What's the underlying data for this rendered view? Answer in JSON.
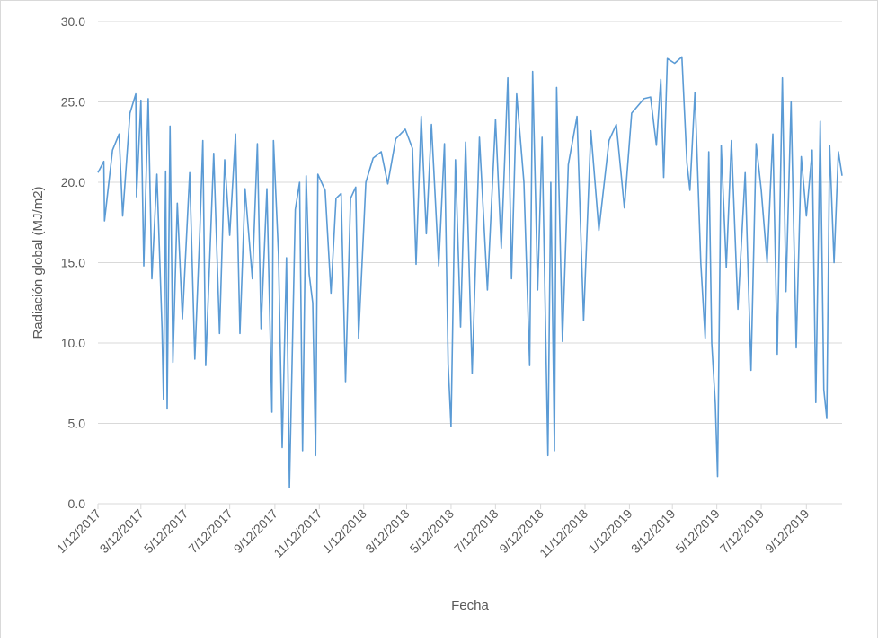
{
  "chart_data": {
    "type": "line",
    "title": "",
    "xlabel": "Fecha",
    "ylabel": "Radiación global (MJ/m2)",
    "ylim": [
      0,
      30
    ],
    "yticks": [
      "0.0",
      "5.0",
      "10.0",
      "15.0",
      "20.0",
      "25.0",
      "30.0"
    ],
    "xlim": [
      "2017-01-12",
      "2019-10-31"
    ],
    "xticks": [
      {
        "date": "2017-01-12",
        "label": "1/12/2017"
      },
      {
        "date": "2017-03-12",
        "label": "3/12/2017"
      },
      {
        "date": "2017-05-12",
        "label": "5/12/2017"
      },
      {
        "date": "2017-07-12",
        "label": "7/12/2017"
      },
      {
        "date": "2017-09-12",
        "label": "9/12/2017"
      },
      {
        "date": "2017-11-12",
        "label": "11/12/2017"
      },
      {
        "date": "2018-01-12",
        "label": "1/12/2018"
      },
      {
        "date": "2018-03-12",
        "label": "3/12/2018"
      },
      {
        "date": "2018-05-12",
        "label": "5/12/2018"
      },
      {
        "date": "2018-07-12",
        "label": "7/12/2018"
      },
      {
        "date": "2018-09-12",
        "label": "9/12/2018"
      },
      {
        "date": "2018-11-12",
        "label": "11/12/2018"
      },
      {
        "date": "2019-01-12",
        "label": "1/12/2019"
      },
      {
        "date": "2019-03-12",
        "label": "3/12/2019"
      },
      {
        "date": "2019-05-12",
        "label": "5/12/2019"
      },
      {
        "date": "2019-07-12",
        "label": "7/12/2019"
      },
      {
        "date": "2019-09-12",
        "label": "9/12/2019"
      }
    ],
    "grid": "horizontal",
    "legend": "none",
    "line_color": "#5b9bd5",
    "series": [
      {
        "points": [
          [
            "2017-01-12",
            20.6
          ],
          [
            "2017-01-20",
            21.3
          ],
          [
            "2017-01-21",
            17.6
          ],
          [
            "2017-02-01",
            22.0
          ],
          [
            "2017-02-10",
            23.0
          ],
          [
            "2017-02-15",
            17.9
          ],
          [
            "2017-02-25",
            24.3
          ],
          [
            "2017-03-05",
            25.5
          ],
          [
            "2017-03-06",
            19.1
          ],
          [
            "2017-03-12",
            25.1
          ],
          [
            "2017-03-16",
            14.8
          ],
          [
            "2017-03-22",
            25.2
          ],
          [
            "2017-03-27",
            14.0
          ],
          [
            "2017-04-03",
            20.5
          ],
          [
            "2017-04-10",
            10.9
          ],
          [
            "2017-04-12",
            6.5
          ],
          [
            "2017-04-15",
            20.7
          ],
          [
            "2017-04-17",
            5.9
          ],
          [
            "2017-04-21",
            23.5
          ],
          [
            "2017-04-25",
            8.8
          ],
          [
            "2017-05-01",
            18.7
          ],
          [
            "2017-05-08",
            11.5
          ],
          [
            "2017-05-18",
            20.6
          ],
          [
            "2017-05-25",
            9.0
          ],
          [
            "2017-06-01",
            17.0
          ],
          [
            "2017-06-05",
            22.6
          ],
          [
            "2017-06-09",
            8.6
          ],
          [
            "2017-06-20",
            21.8
          ],
          [
            "2017-06-28",
            10.6
          ],
          [
            "2017-07-05",
            21.4
          ],
          [
            "2017-07-12",
            16.7
          ],
          [
            "2017-07-20",
            23.0
          ],
          [
            "2017-07-26",
            10.6
          ],
          [
            "2017-08-02",
            19.6
          ],
          [
            "2017-08-12",
            14.0
          ],
          [
            "2017-08-19",
            22.4
          ],
          [
            "2017-08-24",
            10.9
          ],
          [
            "2017-09-01",
            19.6
          ],
          [
            "2017-09-08",
            5.7
          ],
          [
            "2017-09-10",
            22.6
          ],
          [
            "2017-09-17",
            15.5
          ],
          [
            "2017-09-22",
            3.5
          ],
          [
            "2017-09-28",
            15.3
          ],
          [
            "2017-10-02",
            1.0
          ],
          [
            "2017-10-10",
            18.3
          ],
          [
            "2017-10-16",
            20.0
          ],
          [
            "2017-10-20",
            3.3
          ],
          [
            "2017-10-25",
            20.4
          ],
          [
            "2017-10-29",
            14.3
          ],
          [
            "2017-11-03",
            12.5
          ],
          [
            "2017-11-07",
            3.0
          ],
          [
            "2017-11-10",
            20.5
          ],
          [
            "2017-11-20",
            19.5
          ],
          [
            "2017-11-28",
            13.1
          ],
          [
            "2017-12-05",
            19.0
          ],
          [
            "2017-12-12",
            19.3
          ],
          [
            "2017-12-18",
            7.6
          ],
          [
            "2017-12-25",
            19.0
          ],
          [
            "2018-01-01",
            19.7
          ],
          [
            "2018-01-05",
            10.3
          ],
          [
            "2018-01-15",
            20.0
          ],
          [
            "2018-01-25",
            21.5
          ],
          [
            "2018-02-05",
            21.9
          ],
          [
            "2018-02-14",
            19.9
          ],
          [
            "2018-02-25",
            22.7
          ],
          [
            "2018-03-10",
            23.3
          ],
          [
            "2018-03-20",
            22.1
          ],
          [
            "2018-03-25",
            14.9
          ],
          [
            "2018-04-01",
            24.1
          ],
          [
            "2018-04-08",
            16.8
          ],
          [
            "2018-04-15",
            23.6
          ],
          [
            "2018-04-25",
            14.8
          ],
          [
            "2018-05-03",
            22.4
          ],
          [
            "2018-05-08",
            8.7
          ],
          [
            "2018-05-12",
            4.8
          ],
          [
            "2018-05-18",
            21.4
          ],
          [
            "2018-05-25",
            11.0
          ],
          [
            "2018-06-01",
            22.5
          ],
          [
            "2018-06-10",
            8.1
          ],
          [
            "2018-06-20",
            22.8
          ],
          [
            "2018-07-01",
            13.3
          ],
          [
            "2018-07-12",
            23.9
          ],
          [
            "2018-07-20",
            15.9
          ],
          [
            "2018-07-29",
            26.5
          ],
          [
            "2018-08-03",
            14.0
          ],
          [
            "2018-08-10",
            25.5
          ],
          [
            "2018-08-20",
            20.0
          ],
          [
            "2018-08-28",
            8.6
          ],
          [
            "2018-09-01",
            26.9
          ],
          [
            "2018-09-08",
            13.3
          ],
          [
            "2018-09-14",
            22.8
          ],
          [
            "2018-09-22",
            3.0
          ],
          [
            "2018-09-26",
            20.0
          ],
          [
            "2018-10-01",
            3.3
          ],
          [
            "2018-10-04",
            25.9
          ],
          [
            "2018-10-12",
            10.1
          ],
          [
            "2018-10-20",
            21.1
          ],
          [
            "2018-11-01",
            24.1
          ],
          [
            "2018-11-10",
            11.4
          ],
          [
            "2018-11-20",
            23.2
          ],
          [
            "2018-12-01",
            17.0
          ],
          [
            "2018-12-15",
            22.6
          ],
          [
            "2018-12-25",
            23.6
          ],
          [
            "2019-01-05",
            18.4
          ],
          [
            "2019-01-15",
            24.3
          ],
          [
            "2019-02-01",
            25.2
          ],
          [
            "2019-02-10",
            25.3
          ],
          [
            "2019-02-18",
            22.3
          ],
          [
            "2019-02-24",
            26.4
          ],
          [
            "2019-02-28",
            20.3
          ],
          [
            "2019-03-05",
            27.7
          ],
          [
            "2019-03-15",
            27.4
          ],
          [
            "2019-03-25",
            27.8
          ],
          [
            "2019-04-01",
            21.2
          ],
          [
            "2019-04-05",
            19.5
          ],
          [
            "2019-04-12",
            25.6
          ],
          [
            "2019-04-20",
            15.0
          ],
          [
            "2019-04-26",
            10.3
          ],
          [
            "2019-05-01",
            21.9
          ],
          [
            "2019-05-05",
            10.0
          ],
          [
            "2019-05-10",
            6.2
          ],
          [
            "2019-05-13",
            1.7
          ],
          [
            "2019-05-18",
            22.3
          ],
          [
            "2019-05-25",
            14.7
          ],
          [
            "2019-06-01",
            22.6
          ],
          [
            "2019-06-10",
            12.1
          ],
          [
            "2019-06-20",
            20.6
          ],
          [
            "2019-06-28",
            8.3
          ],
          [
            "2019-07-05",
            22.4
          ],
          [
            "2019-07-12",
            19.5
          ],
          [
            "2019-07-20",
            15.0
          ],
          [
            "2019-07-28",
            23.0
          ],
          [
            "2019-08-03",
            9.3
          ],
          [
            "2019-08-10",
            26.5
          ],
          [
            "2019-08-15",
            13.2
          ],
          [
            "2019-08-22",
            25.0
          ],
          [
            "2019-08-29",
            9.7
          ],
          [
            "2019-09-05",
            21.6
          ],
          [
            "2019-09-12",
            17.9
          ],
          [
            "2019-09-20",
            22.0
          ],
          [
            "2019-09-25",
            6.3
          ],
          [
            "2019-10-01",
            23.8
          ],
          [
            "2019-10-06",
            7.1
          ],
          [
            "2019-10-10",
            5.3
          ],
          [
            "2019-10-14",
            22.3
          ],
          [
            "2019-10-20",
            15.0
          ],
          [
            "2019-10-26",
            21.9
          ],
          [
            "2019-10-31",
            20.4
          ]
        ]
      }
    ]
  }
}
